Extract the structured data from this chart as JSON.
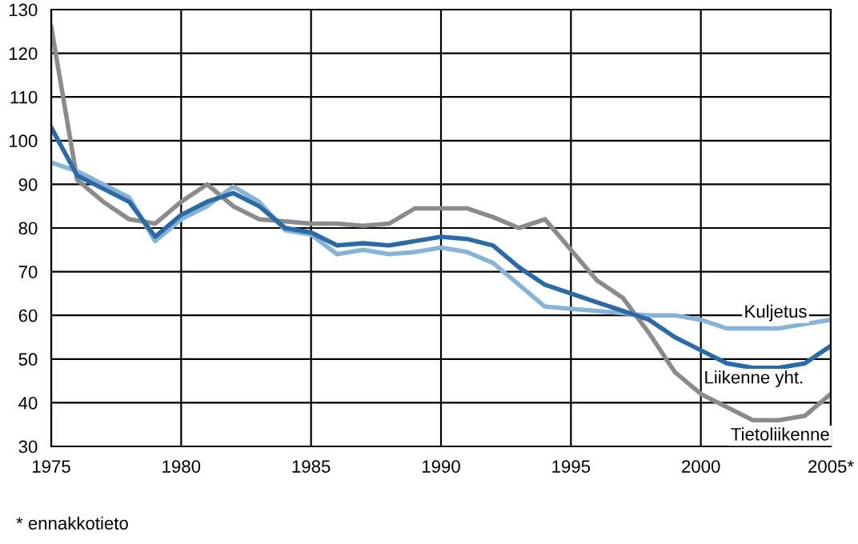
{
  "chart_data": {
    "type": "line",
    "x": [
      1975,
      1976,
      1977,
      1978,
      1979,
      1980,
      1981,
      1982,
      1983,
      1984,
      1985,
      1986,
      1987,
      1988,
      1989,
      1990,
      1991,
      1992,
      1993,
      1994,
      1995,
      1996,
      1997,
      1998,
      1999,
      2000,
      2001,
      2002,
      2003,
      2004,
      2005
    ],
    "series": [
      {
        "name": "Tietoliikenne",
        "color": "#8c8a8c",
        "values": [
          126,
          91,
          86,
          82,
          81,
          86,
          90,
          85,
          82,
          81.5,
          81,
          81,
          80.5,
          81,
          84.5,
          84.5,
          84.5,
          82.5,
          80,
          82,
          75,
          68,
          64,
          56,
          47,
          42,
          39,
          36,
          36,
          37,
          42
        ]
      },
      {
        "name": "Kuljetus",
        "color": "#86b3d6",
        "values": [
          95,
          93,
          90,
          87,
          77,
          82,
          85,
          89.5,
          86,
          79.5,
          78.5,
          74,
          75,
          74,
          74.5,
          75.5,
          74.5,
          72,
          67,
          62,
          61.5,
          61,
          60.5,
          60,
          60,
          59,
          57,
          57,
          57,
          58,
          59
        ]
      },
      {
        "name": "Liikenne yht.",
        "color": "#2b6aa6",
        "values": [
          103,
          92,
          89,
          86,
          78,
          83,
          86,
          88,
          85,
          80,
          79,
          76,
          76.5,
          76,
          77,
          78,
          77.5,
          76,
          71,
          67,
          65,
          63,
          61,
          59,
          55,
          52,
          49,
          48,
          48,
          49,
          53
        ]
      }
    ],
    "xlim": [
      1975,
      2005
    ],
    "xticks": [
      1975,
      1980,
      1985,
      1990,
      1995,
      2000,
      {
        "value": 2005,
        "label": "2005*"
      }
    ],
    "ylim": [
      30,
      130
    ],
    "yticks": [
      30,
      40,
      50,
      60,
      70,
      80,
      90,
      100,
      110,
      120,
      130
    ],
    "grid": true,
    "legend": false,
    "marker": "none",
    "line_style": "solid",
    "annotations": [
      "* ennakkotieto"
    ]
  }
}
